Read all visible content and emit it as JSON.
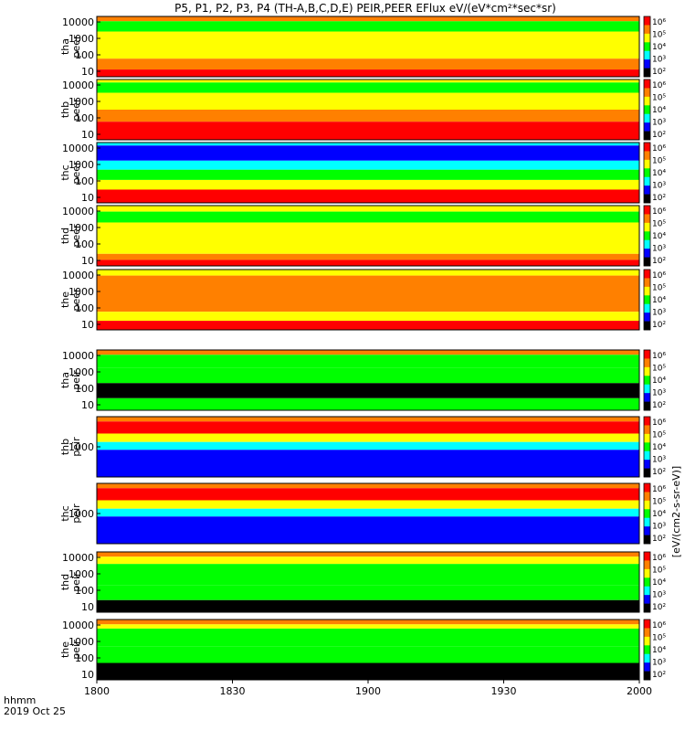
{
  "title": "P5, P1, P2, P3, P4 (TH-A,B,C,D,E) PEIR,PEER EFlux eV/(eV*cm²*sec*sr)",
  "x_axis": {
    "label_line1": "hhmm",
    "label_line2": "2019 Oct 25",
    "ticks": [
      "1800",
      "1830",
      "1900",
      "1930",
      "2000"
    ]
  },
  "colorbar_label": "[eV/(cm2-s-sr-eV)]",
  "colormap_colors": [
    "#ff0000",
    "#ff8000",
    "#ffff00",
    "#00ff00",
    "#00ffff",
    "#0000ff",
    "#000000"
  ],
  "chart_data": {
    "type": "heatmap",
    "x_range": [
      "1800",
      "2000"
    ],
    "panels": [
      {
        "id": "tha_peer",
        "label_line1": "tha",
        "label_line2": "peer",
        "y_ticks": [
          "10",
          "100",
          "1000",
          "10000"
        ],
        "colorbar_ticks": [
          "10²",
          "10³",
          "10⁴",
          "10⁵",
          "10⁶"
        ]
      },
      {
        "id": "thb_peer",
        "label_line1": "thb",
        "label_line2": "peer",
        "y_ticks": [
          "10",
          "100",
          "1000",
          "10000"
        ],
        "colorbar_ticks": [
          "10²",
          "10³",
          "10⁴",
          "10⁵",
          "10⁶"
        ]
      },
      {
        "id": "thc_peer",
        "label_line1": "thc",
        "label_line2": "peer",
        "y_ticks": [
          "10",
          "100",
          "1000",
          "10000"
        ],
        "colorbar_ticks": [
          "10²",
          "10³",
          "10⁴",
          "10⁵",
          "10⁶"
        ]
      },
      {
        "id": "thd_peer",
        "label_line1": "thd",
        "label_line2": "peer",
        "y_ticks": [
          "10",
          "100",
          "1000",
          "10000"
        ],
        "colorbar_ticks": [
          "10²",
          "10³",
          "10⁴",
          "10⁵",
          "10⁶"
        ]
      },
      {
        "id": "the_peer",
        "label_line1": "the",
        "label_line2": "peer",
        "y_ticks": [
          "10",
          "100",
          "1000",
          "10000"
        ],
        "colorbar_ticks": [
          "10²",
          "10³",
          "10⁴",
          "10⁵",
          "10⁶"
        ]
      },
      {
        "id": "tha_peir",
        "label_line1": "tha",
        "label_line2": "peir",
        "y_ticks": [
          "10",
          "100",
          "1000",
          "10000"
        ],
        "colorbar_ticks": [
          "10²",
          "10³",
          "10⁴",
          "10⁵",
          "10⁶"
        ]
      },
      {
        "id": "thb_peir",
        "label_line1": "thb",
        "label_line2": "peir",
        "y_ticks": [
          "1000"
        ],
        "colorbar_ticks": [
          "10²",
          "10³",
          "10⁴",
          "10⁵",
          "10⁶"
        ]
      },
      {
        "id": "thc_peir",
        "label_line1": "thc",
        "label_line2": "peir",
        "y_ticks": [
          "1000"
        ],
        "colorbar_ticks": [
          "10²",
          "10³",
          "10⁴",
          "10⁵",
          "10⁶"
        ]
      },
      {
        "id": "thd_peir",
        "label_line1": "thd",
        "label_line2": "peir",
        "y_ticks": [
          "10",
          "100",
          "1000",
          "10000"
        ],
        "colorbar_ticks": [
          "10²",
          "10³",
          "10⁴",
          "10⁵",
          "10⁶"
        ]
      },
      {
        "id": "the_peir",
        "label_line1": "the",
        "label_line2": "peir",
        "y_ticks": [
          "10",
          "100",
          "1000",
          "10000"
        ],
        "colorbar_ticks": [
          "10²",
          "10³",
          "10⁴",
          "10⁵",
          "10⁶"
        ]
      }
    ]
  }
}
